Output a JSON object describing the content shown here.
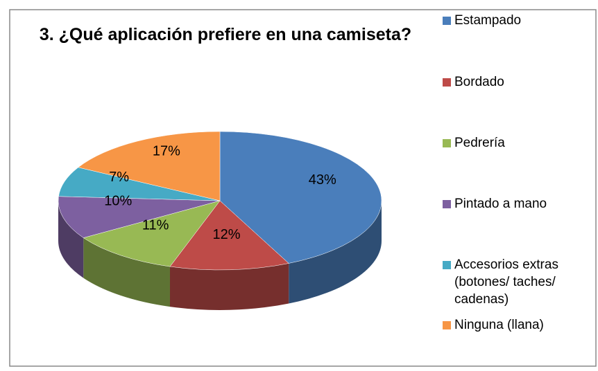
{
  "chart_data": {
    "type": "pie",
    "title": "3. ¿Qué aplicación prefiere en una camiseta?",
    "categories": [
      "Estampado",
      "Bordado",
      "Pedrería",
      "Pintado a mano",
      "Accesorios extras (botones/ taches/ cadenas)",
      "Ninguna (llana)"
    ],
    "values": [
      43,
      12,
      11,
      10,
      7,
      17
    ],
    "value_labels": [
      "43%",
      "12%",
      "11%",
      "10%",
      "7%",
      "17%"
    ],
    "colors": [
      "#4a7ebb",
      "#be4b48",
      "#98b954",
      "#7d60a0",
      "#46aac5",
      "#f79646"
    ]
  }
}
